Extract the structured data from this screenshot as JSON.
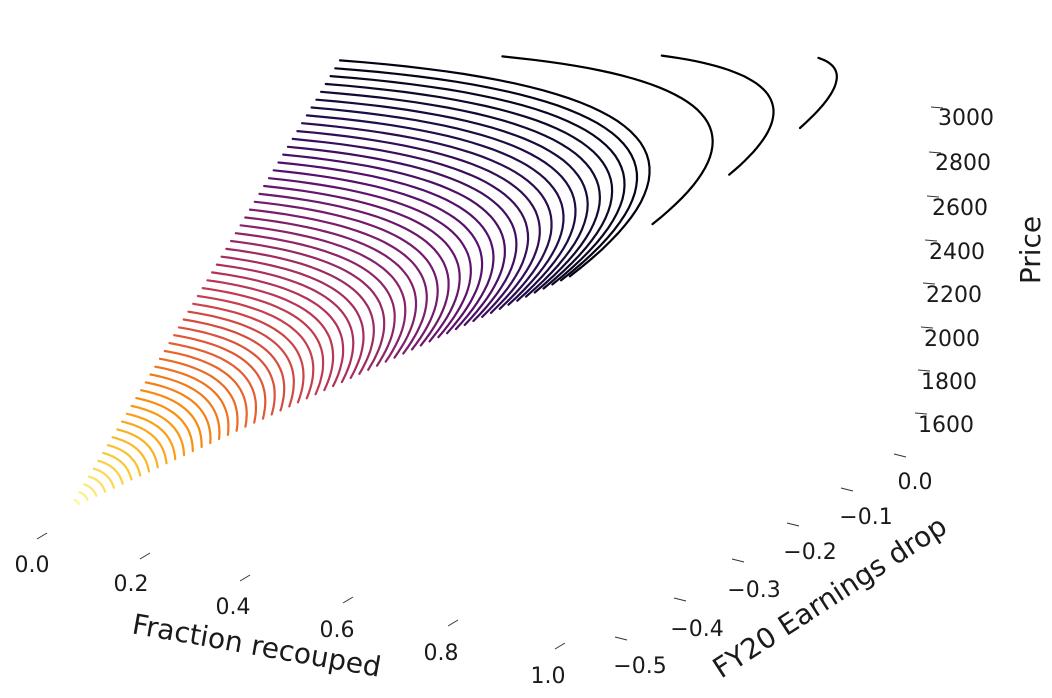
{
  "chart_data": {
    "type": "line",
    "projection": "3d",
    "colormap": "inferno",
    "grid": false,
    "x_axis": {
      "label": "Fraction recouped",
      "ticks": [
        "0.0",
        "0.2",
        "0.4",
        "0.6",
        "0.8",
        "1.0"
      ],
      "range": [
        0.0,
        1.0
      ]
    },
    "y_axis": {
      "label": "FY20 Earnings drop",
      "ticks": [
        "0.0",
        "−0.1",
        "−0.2",
        "−0.3",
        "−0.4",
        "−0.5"
      ],
      "range": [
        -0.5,
        0.0
      ]
    },
    "z_axis": {
      "label": "Price",
      "ticks": [
        "1600",
        "1800",
        "2000",
        "2200",
        "2400",
        "2600",
        "2800",
        "3000"
      ],
      "range": [
        1500,
        3100
      ]
    },
    "series_count": 60
  }
}
